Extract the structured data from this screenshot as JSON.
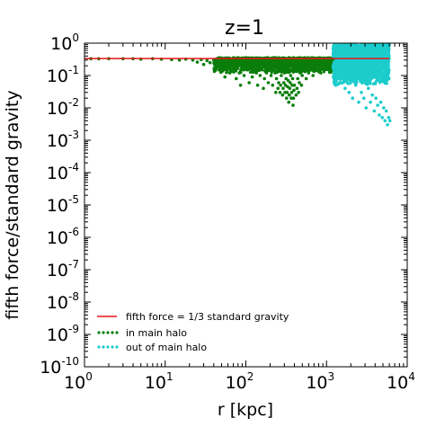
{
  "chart_data": {
    "type": "scatter",
    "title": "z=1",
    "xlabel": "r [kpc]",
    "ylabel": "fifth force/standard gravity",
    "xscale": "log",
    "yscale": "log",
    "xlim": [
      1,
      10000
    ],
    "ylim": [
      1e-10,
      1
    ],
    "x_ticks": [
      {
        "value": 1,
        "base": "10",
        "exp": "0"
      },
      {
        "value": 10,
        "base": "10",
        "exp": "1"
      },
      {
        "value": 100,
        "base": "10",
        "exp": "2"
      },
      {
        "value": 1000,
        "base": "10",
        "exp": "3"
      },
      {
        "value": 10000,
        "base": "10",
        "exp": "4"
      }
    ],
    "y_ticks": [
      {
        "value": 1,
        "base": "10",
        "exp": "0"
      },
      {
        "value": 0.1,
        "base": "10",
        "exp": "-1"
      },
      {
        "value": 0.01,
        "base": "10",
        "exp": "-2"
      },
      {
        "value": 0.001,
        "base": "10",
        "exp": "-3"
      },
      {
        "value": 0.0001,
        "base": "10",
        "exp": "-4"
      },
      {
        "value": 1e-05,
        "base": "10",
        "exp": "-5"
      },
      {
        "value": 1e-06,
        "base": "10",
        "exp": "-6"
      },
      {
        "value": 1e-07,
        "base": "10",
        "exp": "-7"
      },
      {
        "value": 1e-08,
        "base": "10",
        "exp": "-8"
      },
      {
        "value": 1e-09,
        "base": "10",
        "exp": "-9"
      },
      {
        "value": 1e-10,
        "base": "10",
        "exp": "-10"
      }
    ],
    "legend_position": "lower-left",
    "series": [
      {
        "name": "fifth force = 1/3 standard gravity",
        "kind": "line",
        "color": "#e8141a",
        "x": [
          1,
          6000
        ],
        "y": [
          0.3333,
          0.3333
        ]
      },
      {
        "name": "in main halo",
        "kind": "scatter",
        "color": "#0a7d0a",
        "points": [
          [
            1.2,
            0.33
          ],
          [
            1.5,
            0.33
          ],
          [
            2,
            0.33
          ],
          [
            3,
            0.33
          ],
          [
            4,
            0.33
          ],
          [
            5,
            0.32
          ],
          [
            7,
            0.33
          ],
          [
            9,
            0.32
          ],
          [
            12,
            0.31
          ],
          [
            15,
            0.3
          ],
          [
            18,
            0.32
          ],
          [
            22,
            0.3
          ],
          [
            25,
            0.26
          ],
          [
            28,
            0.31
          ],
          [
            30,
            0.22
          ],
          [
            33,
            0.29
          ],
          [
            36,
            0.25
          ],
          [
            40,
            0.3
          ],
          [
            43,
            0.2
          ],
          [
            46,
            0.28
          ],
          [
            50,
            0.18
          ],
          [
            52,
            0.26
          ],
          [
            55,
            0.09
          ],
          [
            58,
            0.15
          ],
          [
            60,
            0.28
          ],
          [
            63,
            0.12
          ],
          [
            66,
            0.22
          ],
          [
            70,
            0.3
          ],
          [
            73,
            0.16
          ],
          [
            76,
            0.08
          ],
          [
            80,
            0.25
          ],
          [
            83,
            0.12
          ],
          [
            86,
            0.05
          ],
          [
            90,
            0.2
          ],
          [
            95,
            0.1
          ],
          [
            100,
            0.28
          ],
          [
            105,
            0.15
          ],
          [
            110,
            0.06
          ],
          [
            115,
            0.22
          ],
          [
            120,
            0.09
          ],
          [
            125,
            0.18
          ],
          [
            130,
            0.3
          ],
          [
            135,
            0.12
          ],
          [
            140,
            0.05
          ],
          [
            145,
            0.2
          ],
          [
            150,
            0.1
          ],
          [
            155,
            0.25
          ],
          [
            160,
            0.15
          ],
          [
            165,
            0.04
          ],
          [
            170,
            0.08
          ],
          [
            175,
            0.18
          ],
          [
            180,
            0.12
          ],
          [
            185,
            0.28
          ],
          [
            190,
            0.06
          ],
          [
            195,
            0.15
          ],
          [
            200,
            0.25
          ],
          [
            205,
            0.1
          ],
          [
            210,
            0.2
          ],
          [
            215,
            0.05
          ],
          [
            220,
            0.15
          ],
          [
            225,
            0.3
          ],
          [
            230,
            0.12
          ],
          [
            235,
            0.03
          ],
          [
            240,
            0.08
          ],
          [
            245,
            0.22
          ],
          [
            250,
            0.04
          ],
          [
            255,
            0.06
          ],
          [
            260,
            0.15
          ],
          [
            265,
            0.03
          ],
          [
            270,
            0.05
          ],
          [
            275,
            0.1
          ],
          [
            280,
            0.2
          ],
          [
            285,
            0.025
          ],
          [
            290,
            0.04
          ],
          [
            295,
            0.06
          ],
          [
            300,
            0.12
          ],
          [
            305,
            0.03
          ],
          [
            310,
            0.05
          ],
          [
            315,
            0.08
          ],
          [
            320,
            0.02
          ],
          [
            325,
            0.03
          ],
          [
            330,
            0.045
          ],
          [
            335,
            0.07
          ],
          [
            340,
            0.015
          ],
          [
            345,
            0.025
          ],
          [
            350,
            0.04
          ],
          [
            355,
            0.06
          ],
          [
            360,
            0.1
          ],
          [
            365,
            0.02
          ],
          [
            370,
            0.03
          ],
          [
            375,
            0.05
          ],
          [
            380,
            0.08
          ],
          [
            385,
            0.012
          ],
          [
            390,
            0.02
          ],
          [
            395,
            0.035
          ],
          [
            400,
            0.05
          ],
          [
            410,
            0.15
          ],
          [
            420,
            0.025
          ],
          [
            430,
            0.04
          ],
          [
            440,
            0.08
          ],
          [
            450,
            0.03
          ],
          [
            460,
            0.06
          ],
          [
            470,
            0.12
          ],
          [
            480,
            0.2
          ],
          [
            490,
            0.05
          ],
          [
            500,
            0.1
          ],
          [
            520,
            0.28
          ],
          [
            540,
            0.15
          ],
          [
            560,
            0.08
          ],
          [
            580,
            0.22
          ],
          [
            600,
            0.12
          ],
          [
            620,
            0.3
          ],
          [
            650,
            0.18
          ],
          [
            680,
            0.1
          ],
          [
            700,
            0.25
          ],
          [
            730,
            0.14
          ],
          [
            760,
            0.3
          ],
          [
            800,
            0.2
          ],
          [
            850,
            0.12
          ],
          [
            900,
            0.27
          ],
          [
            950,
            0.18
          ],
          [
            1000,
            0.3
          ],
          [
            1050,
            0.22
          ],
          [
            1100,
            0.15
          ],
          [
            1150,
            0.28
          ],
          [
            1200,
            0.32
          ]
        ]
      },
      {
        "name": "out of main halo",
        "kind": "scatter",
        "color": "#1ccccc",
        "points": [
          [
            1250,
            0.9
          ],
          [
            1300,
            0.05
          ],
          [
            1400,
            0.7
          ],
          [
            1500,
            0.06
          ],
          [
            1600,
            0.5
          ],
          [
            1700,
            0.04
          ],
          [
            1800,
            0.8
          ],
          [
            1900,
            0.03
          ],
          [
            2000,
            0.6
          ],
          [
            2100,
            0.02
          ],
          [
            2200,
            0.9
          ],
          [
            2300,
            0.05
          ],
          [
            2400,
            0.4
          ],
          [
            2500,
            0.015
          ],
          [
            2600,
            0.7
          ],
          [
            2700,
            0.03
          ],
          [
            2800,
            0.95
          ],
          [
            2900,
            0.02
          ],
          [
            3000,
            0.5
          ],
          [
            3100,
            0.01
          ],
          [
            3200,
            0.8
          ],
          [
            3300,
            0.04
          ],
          [
            3400,
            0.6
          ],
          [
            3500,
            0.015
          ],
          [
            3600,
            0.9
          ],
          [
            3700,
            0.025
          ],
          [
            3800,
            0.45
          ],
          [
            3900,
            0.008
          ],
          [
            4000,
            0.75
          ],
          [
            4100,
            0.02
          ],
          [
            4200,
            0.95
          ],
          [
            4300,
            0.012
          ],
          [
            4400,
            0.6
          ],
          [
            4500,
            0.006
          ],
          [
            4600,
            0.85
          ],
          [
            4700,
            0.015
          ],
          [
            4800,
            0.5
          ],
          [
            4900,
            0.005
          ],
          [
            5000,
            0.9
          ],
          [
            5100,
            0.01
          ],
          [
            5200,
            0.7
          ],
          [
            5300,
            0.004
          ],
          [
            5400,
            0.95
          ],
          [
            5500,
            0.008
          ],
          [
            5600,
            0.6
          ],
          [
            5700,
            0.003
          ],
          [
            5800,
            0.85
          ],
          [
            5900,
            0.005
          ],
          [
            6000,
            0.9
          ],
          [
            6100,
            0.004
          ]
        ]
      }
    ],
    "dense_bands": [
      {
        "series": "in main halo",
        "x": [
          40,
          1200
        ],
        "y": [
          0.12,
          0.36
        ]
      },
      {
        "series": "out of main halo",
        "x": [
          1200,
          6000
        ],
        "y": [
          0.05,
          0.9
        ]
      }
    ]
  }
}
